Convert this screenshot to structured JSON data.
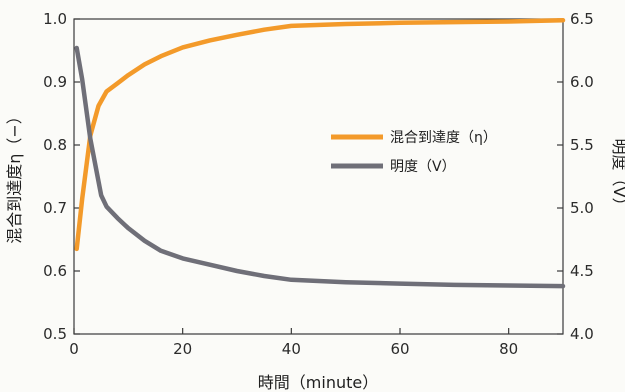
{
  "chart_data": {
    "type": "line",
    "xlabel": "時間（minute）",
    "ylabel_left": "混合到達度η（−）",
    "ylabel_right": "明度（V）",
    "xlim": [
      0,
      90
    ],
    "ylim_left": [
      0.5,
      1.0
    ],
    "ylim_right": [
      4.0,
      6.5
    ],
    "x_ticks": [
      0,
      20,
      40,
      60,
      80
    ],
    "y_left_ticks": [
      0.5,
      0.6,
      0.7,
      0.8,
      0.9,
      1.0
    ],
    "y_right_ticks": [
      4.0,
      4.5,
      5.0,
      5.5,
      6.0,
      6.5
    ],
    "legend_position": "right-middle",
    "grid": false,
    "series": [
      {
        "name": "混合到達度（η）",
        "axis": "left",
        "color": "#f39a2a",
        "points": [
          [
            0.5,
            0.635
          ],
          [
            1.5,
            0.715
          ],
          [
            3,
            0.815
          ],
          [
            4.5,
            0.862
          ],
          [
            6,
            0.885
          ],
          [
            8,
            0.898
          ],
          [
            10,
            0.911
          ],
          [
            13,
            0.928
          ],
          [
            16,
            0.941
          ],
          [
            20,
            0.955
          ],
          [
            25,
            0.966
          ],
          [
            30,
            0.975
          ],
          [
            35,
            0.983
          ],
          [
            40,
            0.989
          ],
          [
            50,
            0.992
          ],
          [
            60,
            0.994
          ],
          [
            70,
            0.995
          ],
          [
            80,
            0.996
          ],
          [
            90,
            0.998
          ]
        ]
      },
      {
        "name": "明度（V）",
        "axis": "right",
        "color": "#6f6f78",
        "points": [
          [
            0.5,
            6.27
          ],
          [
            1.5,
            6.02
          ],
          [
            3,
            5.55
          ],
          [
            5,
            5.1
          ],
          [
            6,
            5.01
          ],
          [
            8,
            4.92
          ],
          [
            10,
            4.84
          ],
          [
            13,
            4.74
          ],
          [
            16,
            4.66
          ],
          [
            20,
            4.6
          ],
          [
            25,
            4.55
          ],
          [
            30,
            4.5
          ],
          [
            35,
            4.46
          ],
          [
            40,
            4.43
          ],
          [
            50,
            4.41
          ],
          [
            60,
            4.4
          ],
          [
            70,
            4.39
          ],
          [
            80,
            4.385
          ],
          [
            90,
            4.38
          ]
        ]
      }
    ]
  }
}
